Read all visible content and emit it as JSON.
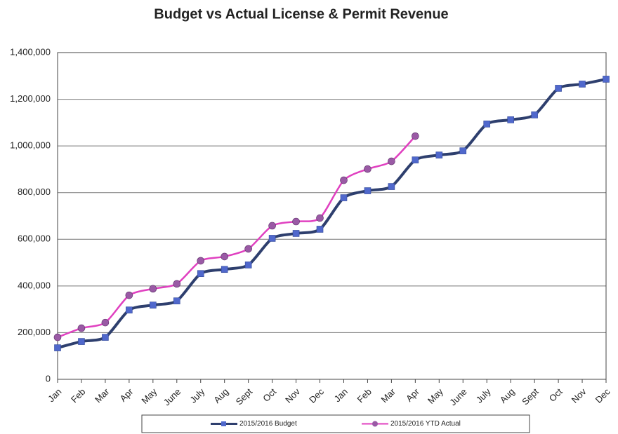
{
  "chart_data": {
    "type": "line",
    "title": "Budget vs Actual License & Permit Revenue",
    "categories": [
      "Jan",
      "Feb",
      "Mar",
      "Apr",
      "May",
      "June",
      "July",
      "Aug",
      "Sept",
      "Oct",
      "Nov",
      "Dec",
      "Jan",
      "Feb",
      "Mar",
      "Apr",
      "May",
      "June",
      "July",
      "Aug",
      "Sept",
      "Oct",
      "Nov",
      "Dec"
    ],
    "series": [
      {
        "name": "2015/2016 Budget",
        "color": "#2e3f6e",
        "marker_color": "#5068cc",
        "marker": "square",
        "values": [
          135000,
          162000,
          180000,
          297000,
          318000,
          336000,
          453000,
          471000,
          490000,
          604000,
          625000,
          643000,
          778000,
          808000,
          826000,
          940000,
          961000,
          979000,
          1094000,
          1112000,
          1133000,
          1247000,
          1265000,
          1286000
        ]
      },
      {
        "name": "2015/2016 YTD Actual",
        "color": "#e040c0",
        "marker_color": "#9a5aa5",
        "marker": "circle",
        "values": [
          180000,
          219000,
          243000,
          360000,
          388000,
          409000,
          508000,
          526000,
          559000,
          658000,
          676000,
          691000,
          853000,
          901000,
          934000,
          1042000,
          null,
          null,
          null,
          null,
          null,
          null,
          null,
          null
        ]
      }
    ],
    "ylim": [
      0,
      1400000
    ],
    "yticks": [
      0,
      {
        "value": 200000,
        "label": "200,000"
      },
      {
        "value": 400000,
        "label": "400,000"
      },
      {
        "value": 600000,
        "label": "600,000"
      },
      {
        "value": 800000,
        "label": "800,000"
      },
      {
        "value": 1000000,
        "label": "1,000,000"
      },
      {
        "value": 1200000,
        "label": "1,200,000"
      },
      {
        "value": 1400000,
        "label": "1,400,000"
      }
    ],
    "grid": true,
    "legend": "bottom"
  }
}
